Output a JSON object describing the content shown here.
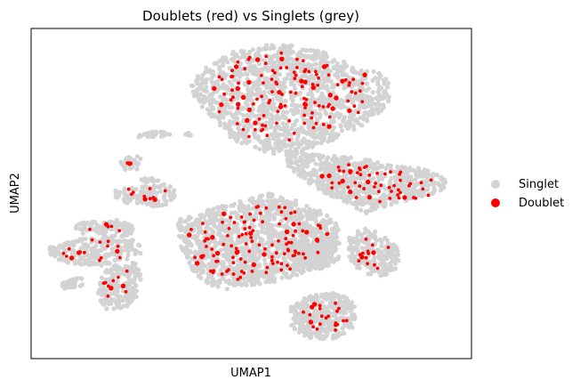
{
  "chart_data": {
    "type": "scatter",
    "title": "Doublets (red) vs Singlets (grey)",
    "xlabel": "UMAP1",
    "ylabel": "UMAP2",
    "xticks": [],
    "yticks": [],
    "xlim": [
      0,
      100
    ],
    "ylim": [
      0,
      100
    ],
    "grid": false,
    "legend_position": "right",
    "series": [
      {
        "name": "Singlet",
        "color": "#d3d3d3",
        "clusters": [
          {
            "type": "poly",
            "points": [
              [
                36,
                82
              ],
              [
                39,
                88
              ],
              [
                46,
                93
              ],
              [
                53,
                95
              ],
              [
                59,
                95
              ],
              [
                66,
                93
              ],
              [
                71,
                90
              ],
              [
                76,
                88
              ],
              [
                80,
                86
              ],
              [
                82,
                82
              ],
              [
                81,
                77
              ],
              [
                77,
                72
              ],
              [
                70,
                67
              ],
              [
                63,
                63
              ],
              [
                55,
                62
              ],
              [
                50,
                64
              ],
              [
                46,
                66
              ],
              [
                42,
                72
              ],
              [
                38,
                77
              ]
            ],
            "n": 1300
          },
          {
            "type": "poly",
            "points": [
              [
                58,
                63
              ],
              [
                65,
                62
              ],
              [
                73,
                61
              ],
              [
                81,
                59
              ],
              [
                87,
                58
              ],
              [
                93,
                56
              ],
              [
                95,
                53
              ],
              [
                92,
                50
              ],
              [
                86,
                48
              ],
              [
                80,
                46
              ],
              [
                76,
                44
              ],
              [
                72,
                47
              ],
              [
                67,
                50
              ],
              [
                62,
                54
              ],
              [
                58,
                58
              ]
            ],
            "n": 700
          },
          {
            "type": "poly",
            "points": [
              [
                33,
                42
              ],
              [
                40,
                45
              ],
              [
                48,
                48
              ],
              [
                54,
                50
              ],
              [
                60,
                48
              ],
              [
                66,
                45
              ],
              [
                70,
                40
              ],
              [
                70,
                34
              ],
              [
                66,
                28
              ],
              [
                58,
                24
              ],
              [
                50,
                22
              ],
              [
                44,
                21
              ],
              [
                39,
                23
              ],
              [
                36,
                28
              ],
              [
                34,
                34
              ]
            ],
            "n": 1300
          },
          {
            "type": "poly",
            "points": [
              [
                58,
                34
              ],
              [
                63,
                36
              ],
              [
                67,
                38
              ],
              [
                70,
                36
              ],
              [
                70,
                30
              ],
              [
                66,
                27
              ],
              [
                61,
                28
              ],
              [
                58,
                31
              ]
            ],
            "n": 150
          },
          {
            "type": "poly",
            "points": [
              [
                72,
                37
              ],
              [
                76,
                40
              ],
              [
                79,
                38
              ],
              [
                83,
                34
              ],
              [
                84,
                28
              ],
              [
                80,
                25
              ],
              [
                75,
                26
              ],
              [
                72,
                30
              ]
            ],
            "n": 200
          },
          {
            "type": "poly",
            "points": [
              [
                59,
                16
              ],
              [
                63,
                19
              ],
              [
                68,
                20
              ],
              [
                72,
                19
              ],
              [
                74,
                15
              ],
              [
                73,
                9
              ],
              [
                69,
                6
              ],
              [
                63,
                6
              ],
              [
                59,
                9
              ]
            ],
            "n": 350
          },
          {
            "type": "poly",
            "points": [
              [
                10,
                41
              ],
              [
                16,
                42
              ],
              [
                22,
                42
              ],
              [
                24,
                40
              ],
              [
                22,
                37
              ],
              [
                16,
                37
              ],
              [
                10,
                38
              ]
            ],
            "n": 90
          },
          {
            "type": "poly",
            "points": [
              [
                4,
                34
              ],
              [
                10,
                36
              ],
              [
                17,
                37
              ],
              [
                23,
                36
              ],
              [
                26,
                33
              ],
              [
                22,
                29
              ],
              [
                14,
                28
              ],
              [
                8,
                29
              ],
              [
                4,
                31
              ]
            ],
            "n": 220
          },
          {
            "type": "poly",
            "points": [
              [
                16,
                26
              ],
              [
                20,
                29
              ],
              [
                24,
                29
              ],
              [
                25,
                25
              ],
              [
                24,
                18
              ],
              [
                21,
                15
              ],
              [
                17,
                15
              ],
              [
                15,
                19
              ]
            ],
            "n": 180
          },
          {
            "type": "poly",
            "points": [
              [
                7,
                23
              ],
              [
                12,
                25
              ],
              [
                12,
                22
              ],
              [
                7,
                21
              ]
            ],
            "n": 30
          },
          {
            "type": "poly",
            "points": [
              [
                19,
                51
              ],
              [
                24,
                52
              ],
              [
                31,
                53
              ],
              [
                33,
                51
              ],
              [
                32,
                47
              ],
              [
                28,
                46
              ],
              [
                22,
                47
              ],
              [
                19,
                49
              ]
            ],
            "n": 110
          },
          {
            "type": "poly",
            "points": [
              [
                20,
                60
              ],
              [
                23,
                62
              ],
              [
                25,
                61
              ],
              [
                24,
                57
              ],
              [
                21,
                57
              ]
            ],
            "n": 30
          },
          {
            "type": "poly",
            "points": [
              [
                24,
                68
              ],
              [
                29,
                69
              ],
              [
                32,
                68
              ],
              [
                29,
                67
              ],
              [
                24,
                67
              ]
            ],
            "n": 25
          },
          {
            "type": "poly",
            "points": [
              [
                24,
                54
              ],
              [
                27,
                55
              ],
              [
                29,
                54
              ],
              [
                27,
                53
              ]
            ],
            "n": 12
          },
          {
            "type": "poly",
            "points": [
              [
                35,
                68
              ],
              [
                37,
                69
              ],
              [
                36,
                67
              ]
            ],
            "n": 6
          },
          {
            "type": "poly",
            "points": [
              [
                62,
                54
              ],
              [
                66,
                55
              ],
              [
                69,
                53
              ],
              [
                66,
                52
              ]
            ],
            "n": 15
          }
        ]
      },
      {
        "name": "Doublet",
        "color": "#ff0000",
        "clusters": [
          {
            "type": "poly",
            "points": [
              [
                40,
                84
              ],
              [
                46,
                91
              ],
              [
                56,
                93
              ],
              [
                66,
                91
              ],
              [
                76,
                86
              ],
              [
                78,
                78
              ],
              [
                70,
                70
              ],
              [
                58,
                66
              ],
              [
                48,
                67
              ],
              [
                42,
                74
              ]
            ],
            "n": 130,
            "big": 26
          },
          {
            "type": "poly",
            "points": [
              [
                64,
                58
              ],
              [
                74,
                59
              ],
              [
                86,
                57
              ],
              [
                93,
                54
              ],
              [
                90,
                49
              ],
              [
                80,
                47
              ],
              [
                72,
                49
              ],
              [
                66,
                53
              ]
            ],
            "n": 55,
            "big": 8
          },
          {
            "type": "poly",
            "points": [
              [
                35,
                40
              ],
              [
                44,
                44
              ],
              [
                54,
                47
              ],
              [
                64,
                44
              ],
              [
                68,
                37
              ],
              [
                64,
                29
              ],
              [
                54,
                25
              ],
              [
                44,
                23
              ],
              [
                38,
                27
              ],
              [
                36,
                33
              ]
            ],
            "n": 120,
            "big": 14
          },
          {
            "type": "poly",
            "points": [
              [
                60,
                14
              ],
              [
                66,
                18
              ],
              [
                72,
                16
              ],
              [
                72,
                10
              ],
              [
                66,
                7
              ],
              [
                61,
                10
              ]
            ],
            "n": 22,
            "big": 3
          },
          {
            "type": "poly",
            "points": [
              [
                73,
                35
              ],
              [
                78,
                38
              ],
              [
                82,
                33
              ],
              [
                80,
                27
              ],
              [
                75,
                27
              ]
            ],
            "n": 14,
            "big": 2
          },
          {
            "type": "poly",
            "points": [
              [
                6,
                34
              ],
              [
                14,
                36
              ],
              [
                22,
                35
              ],
              [
                23,
                31
              ],
              [
                14,
                29
              ],
              [
                7,
                31
              ]
            ],
            "n": 16,
            "big": 3
          },
          {
            "type": "poly",
            "points": [
              [
                16,
                25
              ],
              [
                22,
                27
              ],
              [
                23,
                20
              ],
              [
                18,
                16
              ]
            ],
            "n": 10,
            "big": 2
          },
          {
            "type": "poly",
            "points": [
              [
                20,
                51
              ],
              [
                27,
                52
              ],
              [
                31,
                51
              ],
              [
                29,
                47
              ],
              [
                23,
                48
              ]
            ],
            "n": 10,
            "big": 2
          },
          {
            "type": "poly",
            "points": [
              [
                11,
                40
              ],
              [
                18,
                41
              ],
              [
                22,
                39
              ],
              [
                16,
                38
              ]
            ],
            "n": 5,
            "big": 1
          },
          {
            "type": "poly",
            "points": [
              [
                21,
                60
              ],
              [
                24,
                60
              ],
              [
                23,
                58
              ]
            ],
            "n": 3,
            "big": 1
          }
        ]
      }
    ]
  }
}
